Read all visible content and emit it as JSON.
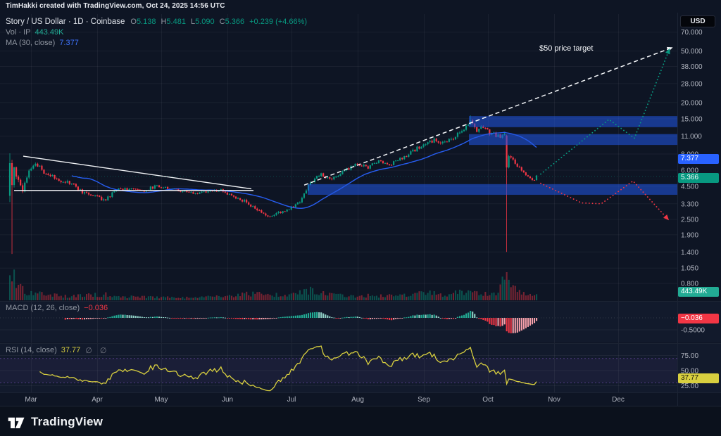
{
  "attribution": "TimHakki created with TradingView.com, Oct 24, 2025 14:56 UTC",
  "legend": {
    "symbol_title": "Story / US Dollar · 1D · Coinbase",
    "ohlc": {
      "o_label": "O",
      "o": "5.138",
      "h_label": "H",
      "h": "5.481",
      "l_label": "L",
      "l": "5.090",
      "c_label": "C",
      "c": "5.366",
      "change": "+0.239 (+4.66%)"
    },
    "volume": {
      "label": "Vol · IP",
      "value": "443.49K"
    },
    "ma": {
      "label": "MA (30, close)",
      "value": "7.377"
    },
    "macd": {
      "label": "MACD (12, 26, close)",
      "value": "−0.036"
    },
    "rsi": {
      "label": "RSI (14, close)",
      "value": "37.77",
      "extra": "∅ ∅"
    }
  },
  "axis": {
    "currency_button": "USD",
    "price_ticks": [
      {
        "label": "70.000",
        "value": 70
      },
      {
        "label": "50.000",
        "value": 50
      },
      {
        "label": "38.000",
        "value": 38
      },
      {
        "label": "28.000",
        "value": 28
      },
      {
        "label": "20.000",
        "value": 20
      },
      {
        "label": "15.000",
        "value": 15
      },
      {
        "label": "11.000",
        "value": 11
      },
      {
        "label": "8.000",
        "value": 8
      },
      {
        "label": "6.000",
        "value": 6
      },
      {
        "label": "4.500",
        "value": 4.5
      },
      {
        "label": "3.300",
        "value": 3.3
      },
      {
        "label": "2.500",
        "value": 2.5
      },
      {
        "label": "1.900",
        "value": 1.9
      },
      {
        "label": "1.400",
        "value": 1.4
      },
      {
        "label": "1.050",
        "value": 1.05
      },
      {
        "label": "0.800",
        "value": 0.8
      }
    ],
    "macd_ticks": [
      {
        "label": "-0.5000",
        "value": -0.5
      }
    ],
    "rsi_ticks": [
      {
        "label": "75.00",
        "value": 75
      },
      {
        "label": "50.00",
        "value": 50
      },
      {
        "label": "25.00",
        "value": 25
      }
    ],
    "time_ticks": [
      "Mar",
      "Apr",
      "May",
      "Jun",
      "Jul",
      "Aug",
      "Sep",
      "Oct",
      "Nov",
      "Dec"
    ],
    "badges": {
      "ma": "7.377",
      "last": "5.366",
      "volume": "443.49K",
      "macd": "−0.036",
      "rsi": "37.77"
    }
  },
  "colors": {
    "up": "#089981",
    "down": "#f23645",
    "ma": "#2962ff",
    "ma_badge": "#2962ff",
    "last_badge": "#089981",
    "volume_badge": "#22ab94",
    "macd_badge": "#f23645",
    "rsi_badge": "#d8cf3f",
    "zone": "rgba(33,84,221,0.58)",
    "proj_up": "#089981",
    "proj_down": "#f23645",
    "rsi_line": "#d8cf3f",
    "rsi_band": "#7e57c2",
    "trendline": "#f0f2f5"
  },
  "chart_data": {
    "type": "candlestick",
    "title": "Story / US Dollar, 1D, Coinbase",
    "log_scale": true,
    "x_range": [
      "Feb 19",
      "Oct 24"
    ],
    "days": 247,
    "last_price": 5.366,
    "annotation": "$50 price target",
    "price_anchors": [
      [
        0,
        5.0,
        2.5
      ],
      [
        2,
        6.2,
        2.0
      ],
      [
        4,
        5.1,
        1.6
      ],
      [
        6,
        4.3,
        1.4
      ],
      [
        9,
        6.2,
        1.3
      ],
      [
        12,
        6.7,
        1.1
      ],
      [
        15,
        6.0,
        1.0
      ],
      [
        19,
        5.4,
        0.9
      ],
      [
        24,
        5.0,
        0.8
      ],
      [
        29,
        4.7,
        0.8
      ],
      [
        34,
        4.05,
        0.8
      ],
      [
        40,
        3.8,
        0.7
      ],
      [
        45,
        3.5,
        0.8
      ],
      [
        50,
        4.25,
        0.8
      ],
      [
        56,
        4.35,
        0.6
      ],
      [
        62,
        4.1,
        0.6
      ],
      [
        68,
        4.5,
        0.6
      ],
      [
        74,
        4.4,
        0.5
      ],
      [
        80,
        4.15,
        0.5
      ],
      [
        86,
        3.95,
        0.5
      ],
      [
        93,
        4.1,
        0.5
      ],
      [
        99,
        4.2,
        0.5
      ],
      [
        105,
        3.7,
        0.6
      ],
      [
        110,
        3.45,
        0.6
      ],
      [
        116,
        2.95,
        0.7
      ],
      [
        121,
        2.6,
        0.7
      ],
      [
        126,
        2.8,
        0.6
      ],
      [
        131,
        3.0,
        0.5
      ],
      [
        136,
        3.4,
        0.7
      ],
      [
        139,
        4.3,
        0.9
      ],
      [
        142,
        5.0,
        0.9
      ],
      [
        146,
        5.65,
        0.8
      ],
      [
        150,
        5.1,
        0.6
      ],
      [
        154,
        5.5,
        0.6
      ],
      [
        158,
        6.1,
        0.6
      ],
      [
        163,
        6.65,
        0.7
      ],
      [
        168,
        6.3,
        0.6
      ],
      [
        173,
        7.1,
        0.7
      ],
      [
        178,
        6.6,
        0.6
      ],
      [
        183,
        7.35,
        0.6
      ],
      [
        186,
        7.7,
        0.6
      ],
      [
        190,
        8.6,
        0.8
      ],
      [
        195,
        9.6,
        0.9
      ],
      [
        200,
        10.3,
        0.9
      ],
      [
        204,
        9.7,
        0.8
      ],
      [
        209,
        10.9,
        1.0
      ],
      [
        213,
        12.8,
        1.1
      ],
      [
        216,
        14.3,
        1.2
      ],
      [
        219,
        12.4,
        1.1
      ],
      [
        222,
        13.1,
        0.9
      ],
      [
        225,
        11.7,
        0.9
      ],
      [
        229,
        11.0,
        0.8
      ],
      [
        232,
        11.2,
        0.8
      ],
      [
        234,
        7.9,
        1.0
      ],
      [
        236,
        7.3,
        0.8
      ],
      [
        238,
        6.5,
        0.7
      ],
      [
        240,
        6.0,
        0.6
      ],
      [
        242,
        5.6,
        0.5
      ],
      [
        244,
        5.15,
        0.5
      ],
      [
        246,
        4.95,
        0.5
      ],
      [
        247,
        5.366,
        0.4
      ]
    ],
    "special_candles": [
      {
        "day": 0,
        "o": 3.8,
        "h": 8.1,
        "l": 3.4,
        "c": 6.8
      },
      {
        "day": 1,
        "o": 6.8,
        "h": 7.2,
        "l": 1.35,
        "c": 4.6
      },
      {
        "day": 216,
        "h": 15.9
      },
      {
        "day": 233,
        "o": 11.1,
        "h": 11.3,
        "l": 1.4,
        "c": 6.3
      }
    ],
    "volume_anchors": [
      [
        0,
        38
      ],
      [
        1,
        44
      ],
      [
        3,
        24
      ],
      [
        6,
        14
      ],
      [
        10,
        11
      ],
      [
        16,
        8
      ],
      [
        24,
        6
      ],
      [
        34,
        7
      ],
      [
        45,
        8
      ],
      [
        55,
        5
      ],
      [
        70,
        4
      ],
      [
        85,
        4
      ],
      [
        95,
        5
      ],
      [
        105,
        7
      ],
      [
        112,
        9
      ],
      [
        121,
        10
      ],
      [
        130,
        6
      ],
      [
        137,
        12
      ],
      [
        141,
        14
      ],
      [
        146,
        11
      ],
      [
        152,
        7
      ],
      [
        160,
        6
      ],
      [
        170,
        7
      ],
      [
        180,
        6
      ],
      [
        188,
        8
      ],
      [
        196,
        10
      ],
      [
        205,
        8
      ],
      [
        213,
        12
      ],
      [
        216,
        14
      ],
      [
        222,
        9
      ],
      [
        229,
        10
      ],
      [
        233,
        44
      ],
      [
        234,
        26
      ],
      [
        236,
        16
      ],
      [
        240,
        10
      ],
      [
        244,
        7
      ],
      [
        247,
        6
      ]
    ],
    "zones": [
      {
        "price_from": 12.9,
        "price_to": 15.7,
        "x_from": 0.6923,
        "x_to": 1
      },
      {
        "price_from": 9.4,
        "price_to": 11.4,
        "x_from": 0.6923,
        "x_to": 1
      },
      {
        "price_from": 3.87,
        "price_to": 4.68,
        "x_from": 0.4543,
        "x_to": 1
      }
    ],
    "trendlines": [
      {
        "style": "solid",
        "x1": 0.0343,
        "p1": 7.7,
        "x2": 0.3711,
        "p2": 4.3
      },
      {
        "style": "solid",
        "x1": 0.0208,
        "p1": 4.18,
        "x2": 0.3742,
        "p2": 4.18
      },
      {
        "style": "dashed",
        "x1": 0.4491,
        "p1": 4.6,
        "x2": 0.9875,
        "p2": 52,
        "arrow": true
      }
    ],
    "projections": [
      {
        "color": "proj_up",
        "arrow": true,
        "points": [
          [
            0.7983,
            5.6
          ],
          [
            0.899,
            14.8
          ],
          [
            0.9366,
            10.6
          ],
          [
            0.9865,
            49
          ]
        ]
      },
      {
        "color": "proj_down",
        "arrow": true,
        "points": [
          [
            0.7983,
            4.75
          ],
          [
            0.8586,
            3.35
          ],
          [
            0.8877,
            3.3
          ],
          [
            0.9345,
            4.95
          ],
          [
            0.9834,
            2.6
          ]
        ]
      }
    ],
    "indicators": {
      "ma": {
        "period": 30,
        "current": 7.377
      },
      "macd": {
        "fast": 12,
        "slow": 26,
        "signal": 9,
        "current": -0.036
      },
      "rsi": {
        "period": 14,
        "current": 37.77,
        "upper_band": 70,
        "lower_band": 30
      },
      "volume_current": "443.49K"
    }
  },
  "footer": {
    "brand": "TradingView"
  }
}
